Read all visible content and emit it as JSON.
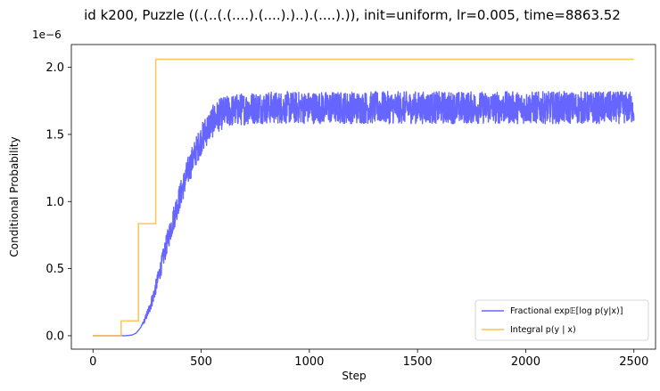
{
  "chart_data": {
    "type": "line",
    "title": "id k200, Puzzle ((.(..(.(....).(....).)..).(....).)), init=uniform, lr=0.005, time=8863.52",
    "xlabel": "Step",
    "ylabel": "Conditional Probability",
    "y_offset_label": "1e−6",
    "xlim": [
      -100,
      2600
    ],
    "ylim": [
      -0.1,
      2.17
    ],
    "y_scale_factor": 1e-06,
    "x_ticks": [
      0,
      500,
      1000,
      1500,
      2000,
      2500
    ],
    "x_tick_labels": [
      "0",
      "500",
      "1000",
      "1500",
      "2000",
      "2500"
    ],
    "y_ticks": [
      0.0,
      0.5,
      1.0,
      1.5,
      2.0
    ],
    "y_tick_labels": [
      "0.0",
      "0.5",
      "1.0",
      "1.5",
      "2.0"
    ],
    "grid": false,
    "legend_position": "lower-right",
    "series": [
      {
        "name": "Fractional exp𝔼[log p(y|x)]",
        "color": "#6666ff",
        "style": "noisy-line",
        "x": [
          0,
          100,
          150,
          180,
          200,
          220,
          240,
          260,
          280,
          300,
          320,
          340,
          360,
          380,
          400,
          420,
          440,
          460,
          480,
          500,
          520,
          540,
          560,
          580,
          600,
          650,
          700,
          750,
          800,
          850,
          900,
          1000,
          1200,
          1500,
          1800,
          2100,
          2400,
          2500
        ],
        "values": [
          0.0,
          0.0,
          0.0,
          0.005,
          0.02,
          0.06,
          0.12,
          0.2,
          0.3,
          0.42,
          0.55,
          0.68,
          0.8,
          0.92,
          1.03,
          1.13,
          1.23,
          1.31,
          1.39,
          1.46,
          1.52,
          1.57,
          1.61,
          1.64,
          1.66,
          1.68,
          1.69,
          1.7,
          1.7,
          1.7,
          1.7,
          1.7,
          1.7,
          1.7,
          1.7,
          1.7,
          1.7,
          1.7
        ],
        "noise_amplitude": [
          0,
          0,
          0,
          0,
          0,
          0,
          0.02,
          0.04,
          0.05,
          0.06,
          0.07,
          0.08,
          0.09,
          0.1,
          0.1,
          0.1,
          0.11,
          0.11,
          0.11,
          0.11,
          0.12,
          0.12,
          0.12,
          0.12,
          0.12,
          0.12,
          0.12,
          0.12,
          0.12,
          0.12,
          0.12,
          0.12,
          0.12,
          0.12,
          0.12,
          0.12,
          0.12,
          0.12
        ]
      },
      {
        "name": "Integral p(y | x)",
        "color": "#ffc04d",
        "style": "step",
        "x": [
          0,
          130,
          130,
          210,
          210,
          290,
          290,
          2500
        ],
        "values": [
          0.0,
          0.0,
          0.11,
          0.11,
          0.835,
          0.835,
          2.06,
          2.06
        ]
      }
    ]
  }
}
